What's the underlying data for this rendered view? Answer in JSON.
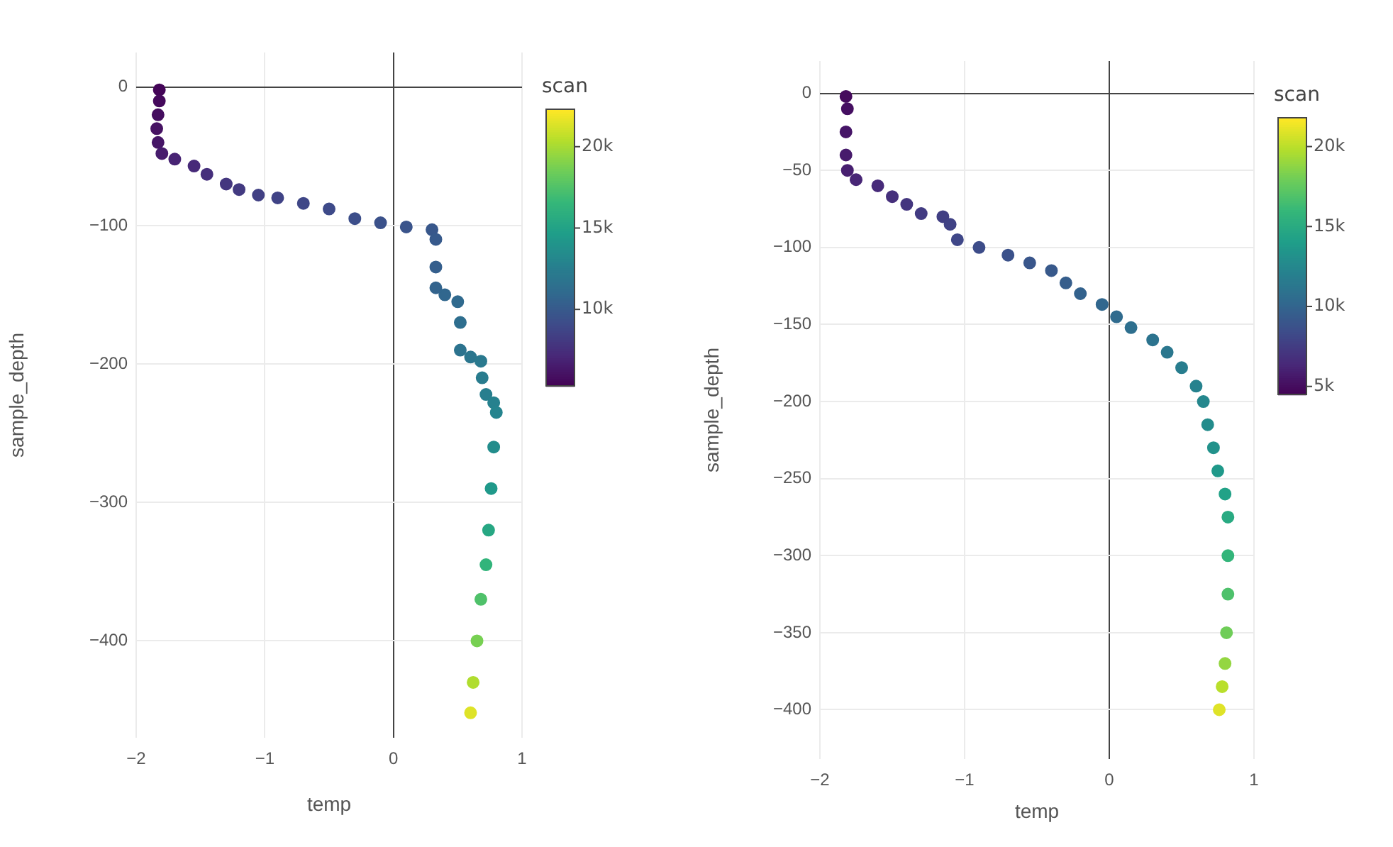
{
  "chart_data": [
    {
      "type": "scatter",
      "xlabel": "temp",
      "ylabel": "sample_depth",
      "clabel": "scan",
      "marker": "circle",
      "grid": true,
      "legend": false,
      "xlim": [
        -2,
        1
      ],
      "xticks": [
        -2,
        -1,
        0,
        1
      ],
      "ylim": [
        -470,
        25
      ],
      "yticks": [
        0,
        -100,
        -200,
        -300,
        -400
      ],
      "clim": [
        5300,
        22300
      ],
      "cticks": [
        {
          "value": 10000,
          "label": "10k"
        },
        {
          "value": 15000,
          "label": "15k"
        },
        {
          "value": 20000,
          "label": "20k"
        }
      ],
      "x": [
        -1.82,
        -1.82,
        -1.83,
        -1.84,
        -1.83,
        -1.8,
        -1.7,
        -1.55,
        -1.45,
        -1.3,
        -1.2,
        -1.05,
        -0.9,
        -0.7,
        -0.5,
        -0.3,
        -0.1,
        0.1,
        0.3,
        0.33,
        0.33,
        0.33,
        0.4,
        0.5,
        0.52,
        0.52,
        0.6,
        0.68,
        0.69,
        0.72,
        0.78,
        0.8,
        0.78,
        0.76,
        0.74,
        0.72,
        0.68,
        0.65,
        0.62,
        0.6
      ],
      "values": [
        -2,
        -10,
        -20,
        -30,
        -40,
        -48,
        -52,
        -57,
        -63,
        -70,
        -74,
        -78,
        -80,
        -84,
        -88,
        -95,
        -98,
        -101,
        -103,
        -110,
        -130,
        -145,
        -150,
        -155,
        -170,
        -190,
        -195,
        -198,
        -210,
        -222,
        -228,
        -235,
        -260,
        -290,
        -320,
        -345,
        -370,
        -400,
        -430,
        -452
      ],
      "cvalues": [
        5500,
        5700,
        5900,
        6100,
        6300,
        6600,
        7000,
        7300,
        7600,
        8000,
        8200,
        8500,
        8700,
        8900,
        9100,
        9300,
        9500,
        9700,
        9900,
        10100,
        10400,
        10700,
        10900,
        11100,
        11400,
        11800,
        12000,
        12200,
        12400,
        12600,
        12800,
        13000,
        13600,
        14400,
        15400,
        16400,
        17500,
        18800,
        20300,
        21500
      ]
    },
    {
      "type": "scatter",
      "xlabel": "temp",
      "ylabel": "sample_depth",
      "clabel": "scan",
      "marker": "circle",
      "grid": true,
      "legend": false,
      "xlim": [
        -2,
        1
      ],
      "xticks": [
        -2,
        -1,
        0,
        1
      ],
      "ylim": [
        -432,
        21
      ],
      "yticks": [
        0,
        -50,
        -100,
        -150,
        -200,
        -250,
        -300,
        -350,
        -400
      ],
      "clim": [
        4500,
        21800
      ],
      "cticks": [
        {
          "value": 5000,
          "label": "5k"
        },
        {
          "value": 10000,
          "label": "10k"
        },
        {
          "value": 15000,
          "label": "15k"
        },
        {
          "value": 20000,
          "label": "20k"
        }
      ],
      "x": [
        -1.82,
        -1.81,
        -1.82,
        -1.82,
        -1.81,
        -1.75,
        -1.6,
        -1.5,
        -1.4,
        -1.3,
        -1.15,
        -1.1,
        -1.05,
        -0.9,
        -0.7,
        -0.55,
        -0.4,
        -0.3,
        -0.2,
        -0.05,
        0.05,
        0.15,
        0.3,
        0.4,
        0.5,
        0.6,
        0.65,
        0.68,
        0.72,
        0.75,
        0.8,
        0.82,
        0.82,
        0.82,
        0.81,
        0.8,
        0.78,
        0.76
      ],
      "values": [
        -2,
        -10,
        -25,
        -40,
        -50,
        -56,
        -60,
        -67,
        -72,
        -78,
        -80,
        -85,
        -95,
        -100,
        -105,
        -110,
        -115,
        -123,
        -130,
        -137,
        -145,
        -152,
        -160,
        -168,
        -178,
        -190,
        -200,
        -215,
        -230,
        -245,
        -260,
        -275,
        -300,
        -325,
        -350,
        -370,
        -385,
        -400
      ],
      "cvalues": [
        5000,
        5200,
        5500,
        5800,
        6000,
        6300,
        6600,
        6900,
        7200,
        7500,
        7700,
        7900,
        8200,
        8500,
        8800,
        9100,
        9300,
        9600,
        9900,
        10200,
        10500,
        10800,
        11100,
        11400,
        11800,
        12200,
        12500,
        12900,
        13300,
        13800,
        14400,
        15000,
        15900,
        16900,
        18000,
        19000,
        20000,
        21000
      ]
    }
  ]
}
